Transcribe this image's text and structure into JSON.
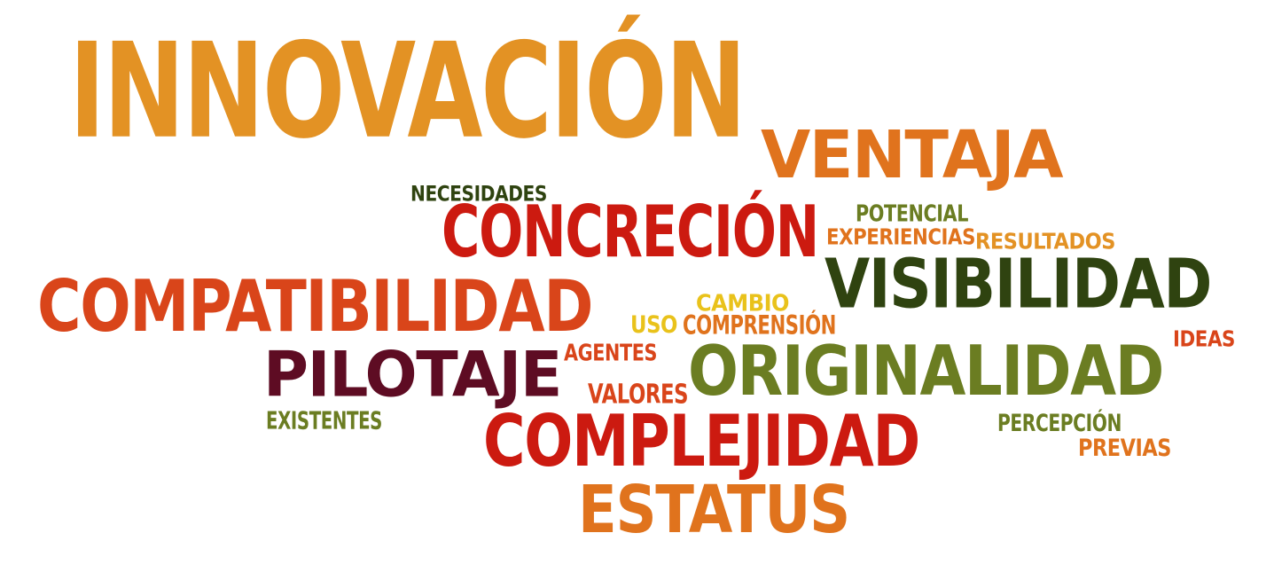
{
  "colors": {
    "light_orange": "#e39224",
    "orange": "#e0731d",
    "red_orange": "#d9451a",
    "red": "#cc1a10",
    "dark_red": "#5e0c23",
    "dark_green": "#2f4310",
    "olive": "#6b7d22",
    "yellow": "#e9c21b"
  },
  "words": {
    "innovacion": "INNOVACIÓN",
    "ventaja": "VENTAJA",
    "necesidades": "NECESIDADES",
    "concrecion": "CONCRECIÓN",
    "potencial": "POTENCIAL",
    "experiencias": "EXPERIENCIAS",
    "resultados": "RESULTADOS",
    "visibilidad": "VISIBILIDAD",
    "compatibilidad": "COMPATIBILIDAD",
    "cambio": "CAMBIO",
    "uso": "USO",
    "comprension": "COMPRENSIÓN",
    "ideas": "IDEAS",
    "agentes": "AGENTES",
    "pilotaje": "PILOTAJE",
    "originalidad": "ORIGINALIDAD",
    "valores": "VALORES",
    "existentes": "EXISTENTES",
    "complejidad": "COMPLEJIDAD",
    "percepcion": "PERCEPCIÓN",
    "previas": "PREVIAS",
    "estatus": "ESTATUS"
  }
}
